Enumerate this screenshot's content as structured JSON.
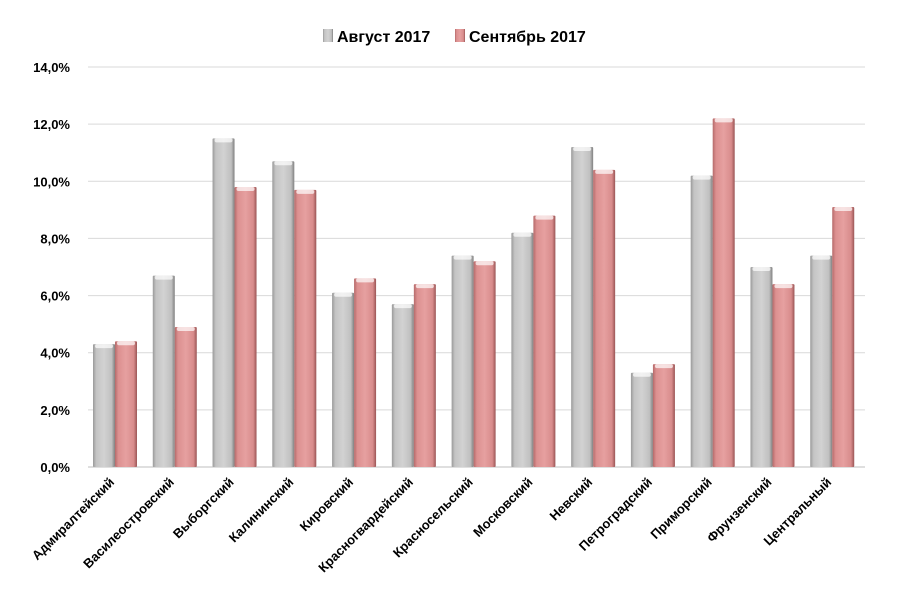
{
  "chart_data": {
    "type": "bar",
    "title": "",
    "xlabel": "",
    "ylabel": "",
    "ylim": [
      0,
      14
    ],
    "y_ticks": [
      "0,0%",
      "2,0%",
      "4,0%",
      "6,0%",
      "8,0%",
      "10,0%",
      "12,0%",
      "14,0%"
    ],
    "grid": true,
    "legend_position": "top",
    "categories": [
      "Адмиралтейский",
      "Василеостровский",
      "Выборгский",
      "Калининский",
      "Кировский",
      "Красногвардейский",
      "Красносельский",
      "Московский",
      "Невский",
      "Петроградский",
      "Приморский",
      "Фрунзенский",
      "Центральный"
    ],
    "series": [
      {
        "name": "Август 2017",
        "color": "#c8c8c8",
        "values": [
          4.3,
          6.7,
          11.5,
          10.7,
          6.1,
          5.7,
          7.4,
          8.2,
          11.2,
          3.3,
          10.2,
          7.0,
          7.4
        ]
      },
      {
        "name": "Сентябрь 2017",
        "color": "#e09a9a",
        "values": [
          4.4,
          4.9,
          9.8,
          9.7,
          6.6,
          6.4,
          7.2,
          8.8,
          10.4,
          3.6,
          12.2,
          6.4,
          9.1
        ]
      }
    ]
  }
}
